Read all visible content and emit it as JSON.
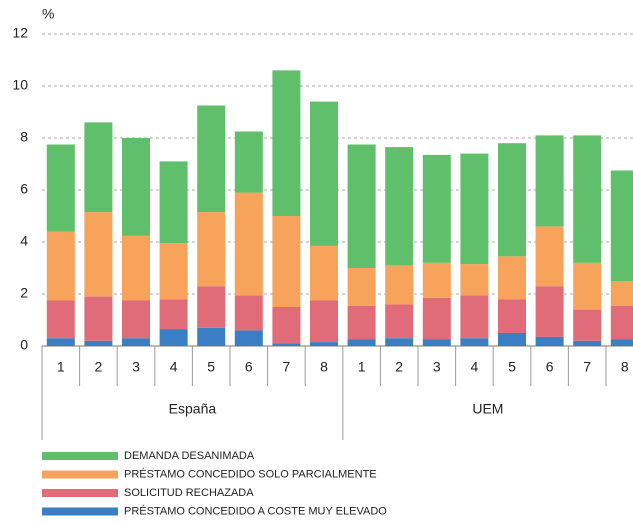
{
  "chart_data": {
    "type": "stacked-bar",
    "unit_label": "%",
    "groups": [
      {
        "name": "España",
        "categories": [
          "1",
          "2",
          "3",
          "4",
          "5",
          "6",
          "7",
          "8"
        ]
      },
      {
        "name": "UEM",
        "categories": [
          "1",
          "2",
          "3",
          "4",
          "5",
          "6",
          "7",
          "8"
        ]
      }
    ],
    "series": [
      {
        "name": "PRÉSTAMO CONCEDIDO A COSTE MUY ELEVADO",
        "color": "#3a7fc4",
        "values": [
          0.3,
          0.2,
          0.3,
          0.65,
          0.7,
          0.6,
          0.1,
          0.15,
          0.25,
          0.3,
          0.25,
          0.3,
          0.5,
          0.35,
          0.2,
          0.25
        ]
      },
      {
        "name": "SOLICITUD RECHAZADA",
        "color": "#e06c7a",
        "values": [
          1.45,
          1.7,
          1.45,
          1.15,
          1.6,
          1.35,
          1.4,
          1.6,
          1.3,
          1.3,
          1.6,
          1.65,
          1.3,
          1.95,
          1.2,
          1.3
        ]
      },
      {
        "name": "PRÉSTAMO CONCEDIDO SOLO PARCIALMENTE",
        "color": "#f7a35c",
        "values": [
          2.65,
          3.25,
          2.5,
          2.15,
          2.85,
          3.95,
          3.5,
          2.1,
          1.45,
          1.5,
          1.35,
          1.2,
          1.65,
          2.3,
          1.8,
          0.95
        ]
      },
      {
        "name": "DEMANDA DESANIMADA",
        "color": "#5fbf6a",
        "values": [
          3.35,
          3.45,
          3.75,
          3.15,
          4.1,
          2.35,
          5.6,
          5.55,
          4.75,
          4.55,
          4.15,
          4.25,
          4.35,
          3.5,
          4.9,
          4.25
        ]
      }
    ],
    "ylim": [
      0,
      12
    ],
    "yticks": [
      0,
      2,
      4,
      6,
      8,
      10,
      12
    ],
    "grid": true
  }
}
